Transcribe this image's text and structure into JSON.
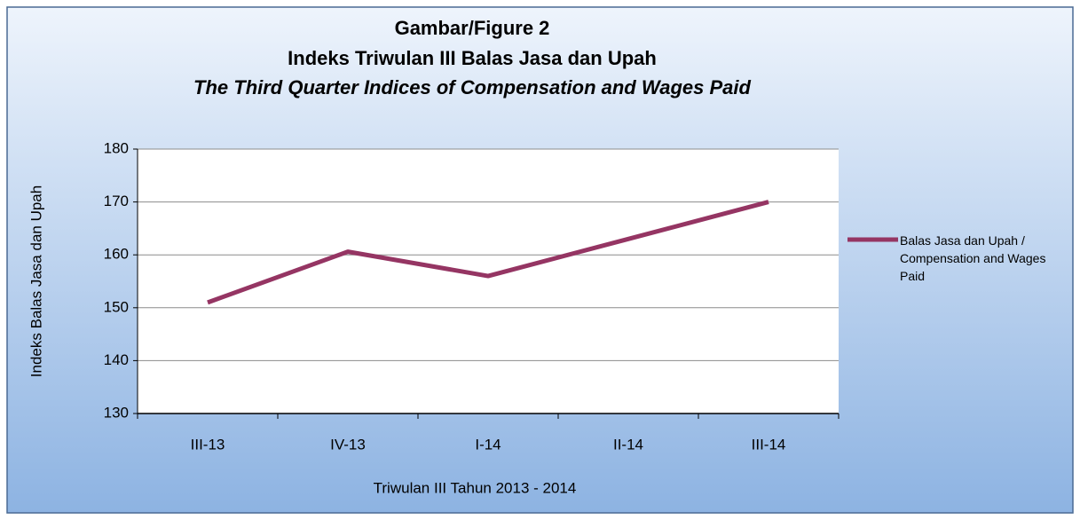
{
  "chart_data": {
    "type": "line",
    "title": "Gambar/Figure 2",
    "subtitle": "Indeks Triwulan III Balas Jasa dan Upah",
    "subtitle_en": "The  Third Quarter Indices of Compensation and Wages Paid",
    "x_label": "Triwulan III Tahun 2013 - 2014",
    "y_label": "Indeks Balas Jasa dan Upah",
    "categories": [
      "III-13",
      "IV-13",
      "I-14",
      "II-14",
      "III-14"
    ],
    "series": [
      {
        "name": "Balas Jasa dan Upah / Compensation and Wages Paid",
        "color": "#953563",
        "values": [
          151,
          160.6,
          156,
          163,
          170
        ]
      }
    ],
    "ylim": [
      130,
      180
    ],
    "yticks": [
      130,
      140,
      150,
      160,
      170,
      180
    ],
    "grid": true,
    "legend": "right"
  }
}
